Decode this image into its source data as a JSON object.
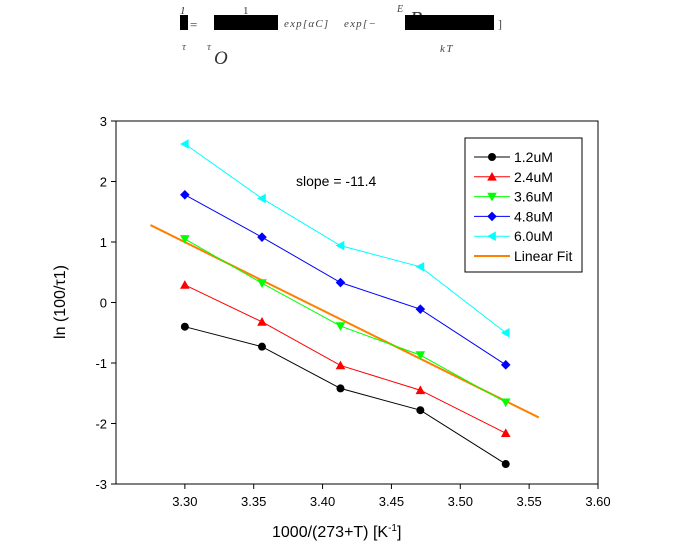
{
  "formula": {
    "numerator_1": "1",
    "tau": "τ",
    "equals": "=",
    "tau_0": "τ",
    "tau_0_sub": "O",
    "numerator_2": "1",
    "exp_text_1": "exp[αC]",
    "exp_text_2": "exp[−",
    "E_letter": "E",
    "B_letter": "B",
    "kT": "kT",
    "close": "]"
  },
  "chart_data": {
    "type": "line",
    "xlabel": "1000/(273+T) [K",
    "xlabel_sup": "-1",
    "xlabel_end": "]",
    "ylabel": "ln (100/τ1)",
    "xlim": [
      3.25,
      3.6
    ],
    "ylim": [
      -3,
      3
    ],
    "xticks": [
      "3.30",
      "3.35",
      "3.40",
      "3.45",
      "3.50",
      "3.55",
      "3.60"
    ],
    "yticks": [
      "-3",
      "-2",
      "-1",
      "0",
      "1",
      "2",
      "3"
    ],
    "x": [
      3.3,
      3.356,
      3.413,
      3.471,
      3.533
    ],
    "series": [
      {
        "name": "1.2uM",
        "color": "#000000",
        "marker": "circle",
        "values": [
          -0.4,
          -0.73,
          -1.42,
          -1.78,
          -2.67
        ]
      },
      {
        "name": "2.4uM",
        "color": "#ff0000",
        "marker": "triangle-up",
        "values": [
          0.29,
          -0.32,
          -1.04,
          -1.45,
          -2.16
        ]
      },
      {
        "name": "3.6uM",
        "color": "#00ff00",
        "marker": "triangle-down",
        "values": [
          1.05,
          0.32,
          -0.39,
          -0.87,
          -1.65
        ]
      },
      {
        "name": "4.8uM",
        "color": "#0000ff",
        "marker": "diamond",
        "values": [
          1.78,
          1.08,
          0.33,
          -0.11,
          -1.03
        ]
      },
      {
        "name": "6.0uM",
        "color": "#00ffff",
        "marker": "triangle-left",
        "values": [
          2.62,
          1.72,
          0.94,
          0.59,
          -0.5
        ]
      }
    ],
    "fit": {
      "name": "Linear Fit",
      "color": "#ff8000",
      "x": [
        3.275,
        3.557
      ],
      "y": [
        1.28,
        -1.9
      ]
    },
    "annotation": "slope = -11.4",
    "legend_position": "top-right",
    "grid": false
  }
}
